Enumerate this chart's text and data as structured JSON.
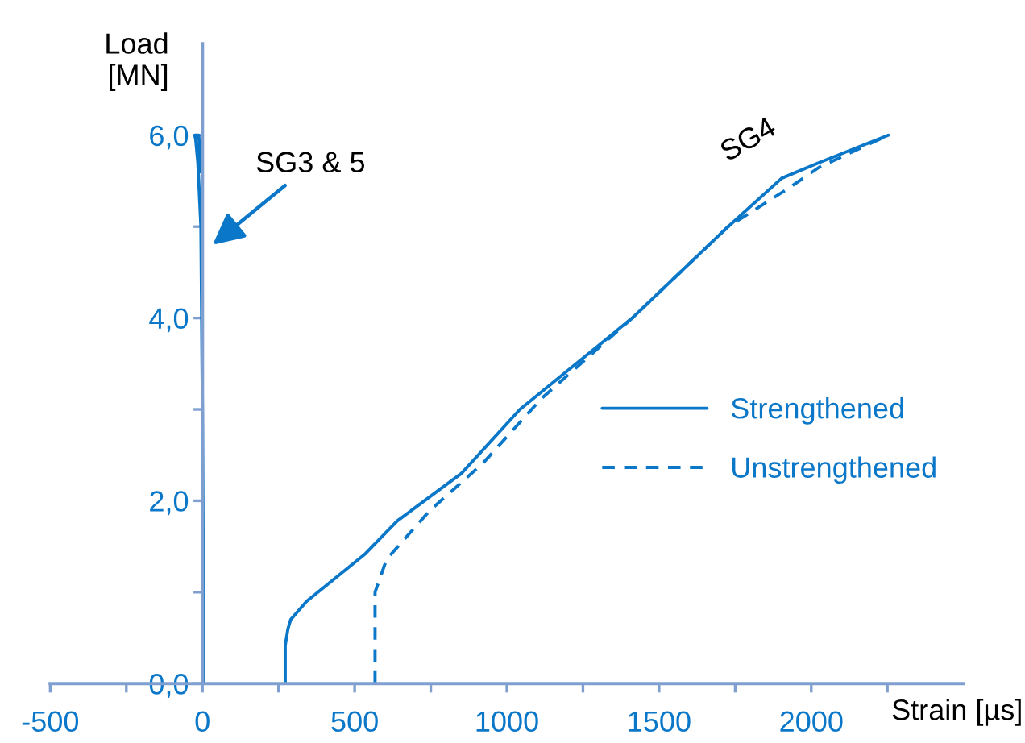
{
  "chart_data": {
    "type": "line",
    "xlabel": "Strain [µs]",
    "ylabel": "Load\n[MN]",
    "xlim": [
      -500,
      2500
    ],
    "ylim": [
      0,
      7
    ],
    "xticks": [
      -500,
      {
        "value": -250,
        "label": null
      },
      0,
      {
        "value": 250,
        "label": null
      },
      500,
      {
        "value": 750,
        "label": null
      },
      1000,
      {
        "value": 1250,
        "label": null
      },
      1500,
      {
        "value": 1750,
        "label": null
      },
      2000,
      {
        "value": 2250,
        "label": null
      }
    ],
    "yticks": [
      {
        "value": 0,
        "label": "0,0"
      },
      {
        "value": 1,
        "label": null
      },
      {
        "value": 2,
        "label": "2,0"
      },
      {
        "value": 3,
        "label": null
      },
      {
        "value": 4,
        "label": "4,0"
      },
      {
        "value": 5,
        "label": null
      },
      {
        "value": 6,
        "label": "6,0"
      }
    ],
    "series": [
      {
        "name": "Strengthened",
        "color": "#0a77c8",
        "line_style": "solid",
        "x": [
          5,
          0,
          -5,
          -15,
          -22,
          -25,
          -12,
          -5,
          null,
          272,
          272,
          281,
          290,
          342,
          535,
          640,
          851,
          1043,
          1412,
          1727,
          1903,
          2026,
          2253
        ],
        "values": [
          0,
          3,
          5,
          5.7,
          5.95,
          6.0,
          6.0,
          5.6,
          null,
          0,
          0.42,
          0.6,
          0.7,
          0.9,
          1.42,
          1.78,
          2.3,
          3.0,
          4.0,
          5.0,
          5.53,
          5.7,
          6.0
        ]
      },
      {
        "name": "Unstrengthened",
        "color": "#0a77c8",
        "line_style": "dashed",
        "x": [
          567,
          567,
          605,
          746,
          921,
          1114,
          1412,
          1727,
          1921,
          2026,
          2253
        ],
        "values": [
          0,
          1.0,
          1.36,
          1.89,
          2.41,
          3.12,
          4.0,
          5.0,
          5.41,
          5.65,
          6.0
        ]
      }
    ],
    "annotations": [
      "SG3 & 5",
      "SG4"
    ],
    "legend": "right",
    "grid": false,
    "marker": "none"
  }
}
